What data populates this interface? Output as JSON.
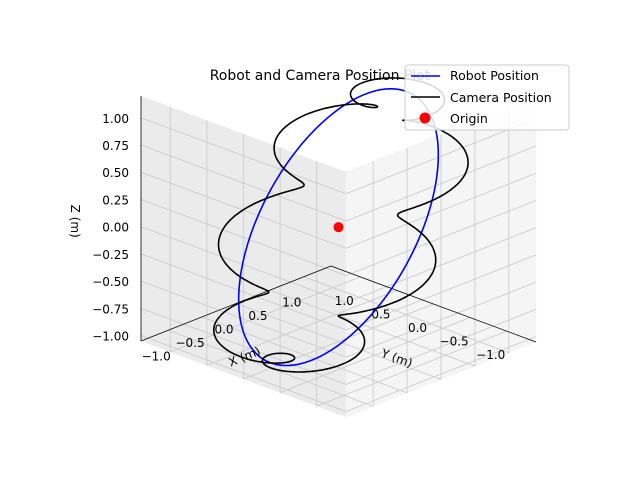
{
  "chart_data": {
    "type": "line3d",
    "title": "Robot and Camera Position Plot",
    "xlabel": "X (m)",
    "ylabel": "Y (m)",
    "zlabel": "Z (m)",
    "xlim": [
      -1.4,
      1.4
    ],
    "ylim": [
      -1.4,
      1.4
    ],
    "zlim": [
      -1.05,
      1.2
    ],
    "x_ticks": [
      "−1.0",
      "−0.5",
      "0.0",
      "0.5",
      "1.0"
    ],
    "x_tick_values": [
      -1.0,
      -0.5,
      0.0,
      0.5,
      1.0
    ],
    "y_ticks": [
      "−1.0",
      "−0.5",
      "0.0",
      "0.5",
      "1.0"
    ],
    "y_tick_values": [
      -1.0,
      -0.5,
      0.0,
      0.5,
      1.0
    ],
    "z_ticks": [
      "−1.00",
      "−0.75",
      "−0.50",
      "−0.25",
      "0.00",
      "0.25",
      "0.50",
      "0.75",
      "1.00"
    ],
    "z_tick_values": [
      -1.0,
      -0.75,
      -0.5,
      -0.25,
      0.0,
      0.25,
      0.5,
      0.75,
      1.0
    ],
    "grid": true,
    "legend_position": "upper-right",
    "series": [
      {
        "name": "Robot Position",
        "kind": "line",
        "color": "#0000ff",
        "parametric": {
          "x": "cos(t)",
          "y": "sin(t)",
          "z": "cos(t)",
          "t_range": [
            0,
            6.2832
          ]
        }
      },
      {
        "name": "Camera Position",
        "kind": "line",
        "color": "#000000",
        "parametric": {
          "x": "cos(t) + 0.3*cos(8t)",
          "y": "sin(t) + 0.3*sin(8t)",
          "z": "cos(t)",
          "t_range": [
            0,
            6.2832
          ]
        }
      },
      {
        "name": "Origin",
        "kind": "scatter",
        "color": "#ff0000",
        "points": [
          [
            0,
            0,
            0
          ]
        ]
      }
    ]
  }
}
